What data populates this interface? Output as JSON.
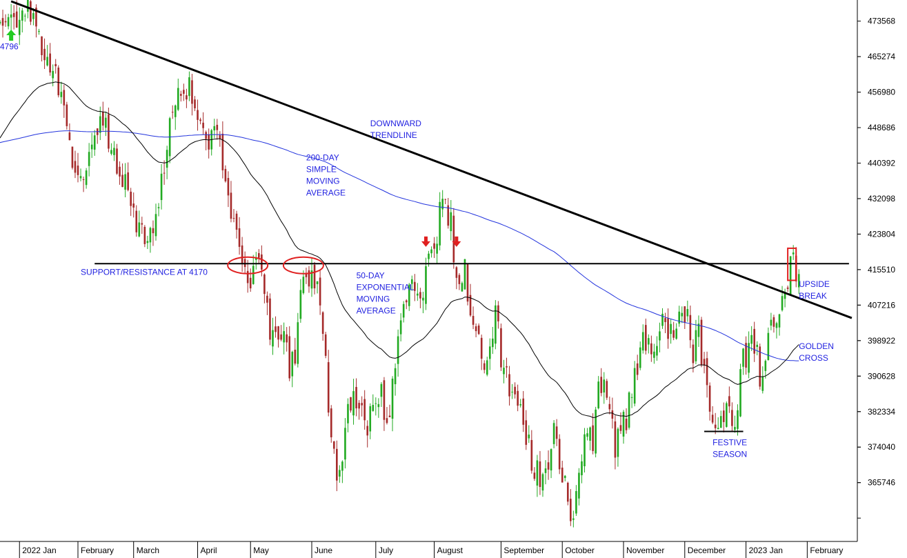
{
  "chart_data": {
    "type": "candlestick",
    "y_ticks": [
      365746,
      374040,
      382334,
      390628,
      398922,
      407216,
      415510,
      423804,
      432098,
      440392,
      448686,
      456980,
      465274,
      473568
    ],
    "ylim": [
      352000,
      478500
    ],
    "x_months": [
      "2022 Jan",
      "February",
      "March",
      "April",
      "May",
      "June",
      "July",
      "August",
      "September",
      "October",
      "November",
      "December",
      "2023 Jan",
      "February"
    ],
    "month_days": [
      0,
      21,
      41,
      64,
      83,
      105,
      128,
      149,
      173,
      195,
      217,
      239,
      261,
      283
    ],
    "x_range_days": [
      -7,
      301
    ],
    "colors": {
      "up": "#22aa22",
      "down": "#a52a2a",
      "sma": "#2233dd",
      "ema": "#000000",
      "trend": "#000000",
      "annotation": "#1f1fe0",
      "marker": "#e02020"
    },
    "close_anchors": [
      [
        -7,
        472000
      ],
      [
        -2,
        474500
      ],
      [
        3,
        476000
      ],
      [
        6,
        472000
      ],
      [
        10,
        466000
      ],
      [
        14,
        458000
      ],
      [
        18,
        444000
      ],
      [
        22,
        436000
      ],
      [
        26,
        446000
      ],
      [
        30,
        451000
      ],
      [
        33,
        444000
      ],
      [
        36,
        438000
      ],
      [
        39,
        434000
      ],
      [
        42,
        426000
      ],
      [
        46,
        420000
      ],
      [
        50,
        432000
      ],
      [
        53,
        446000
      ],
      [
        57,
        455000
      ],
      [
        61,
        458000
      ],
      [
        63,
        454000
      ],
      [
        66,
        449000
      ],
      [
        68,
        443000
      ],
      [
        71,
        448000
      ],
      [
        74,
        436000
      ],
      [
        77,
        428000
      ],
      [
        80,
        416000
      ],
      [
        83,
        412000
      ],
      [
        86,
        420000
      ],
      [
        88,
        408000
      ],
      [
        90,
        402000
      ],
      [
        92,
        398000
      ],
      [
        95,
        400000
      ],
      [
        97,
        393000
      ],
      [
        99,
        397000
      ],
      [
        101,
        410000
      ],
      [
        104,
        414000
      ],
      [
        106,
        412000
      ],
      [
        108,
        408000
      ],
      [
        110,
        396000
      ],
      [
        112,
        375000
      ],
      [
        114,
        368000
      ],
      [
        116,
        374000
      ],
      [
        118,
        383000
      ],
      [
        120,
        387000
      ],
      [
        123,
        381000
      ],
      [
        125,
        380000
      ],
      [
        127,
        383000
      ],
      [
        130,
        386000
      ],
      [
        132,
        379000
      ],
      [
        134,
        390000
      ],
      [
        136,
        397000
      ],
      [
        138,
        404000
      ],
      [
        141,
        411000
      ],
      [
        143,
        413000
      ],
      [
        145,
        411000
      ],
      [
        147,
        416000
      ],
      [
        149,
        421000
      ],
      [
        151,
        428000
      ],
      [
        153,
        430000
      ],
      [
        155,
        426000
      ],
      [
        157,
        413000
      ],
      [
        158,
        410000
      ],
      [
        160,
        418000
      ],
      [
        162,
        404000
      ],
      [
        164,
        399000
      ],
      [
        167,
        393000
      ],
      [
        169,
        398000
      ],
      [
        171,
        406000
      ],
      [
        173,
        396000
      ],
      [
        176,
        389000
      ],
      [
        179,
        386000
      ],
      [
        182,
        378000
      ],
      [
        185,
        369000
      ],
      [
        188,
        365000
      ],
      [
        190,
        372000
      ],
      [
        192,
        377000
      ],
      [
        195,
        366000
      ],
      [
        197,
        362000
      ],
      [
        199,
        356000
      ],
      [
        201,
        367000
      ],
      [
        203,
        378000
      ],
      [
        206,
        376000
      ],
      [
        208,
        386000
      ],
      [
        210,
        388000
      ],
      [
        212,
        386000
      ],
      [
        214,
        374000
      ],
      [
        216,
        381000
      ],
      [
        218,
        378000
      ],
      [
        220,
        389000
      ],
      [
        222,
        393000
      ],
      [
        224,
        398000
      ],
      [
        226,
        400000
      ],
      [
        228,
        396000
      ],
      [
        230,
        402000
      ],
      [
        232,
        404000
      ],
      [
        235,
        399000
      ],
      [
        237,
        405000
      ],
      [
        238,
        408000
      ],
      [
        240,
        403000
      ],
      [
        242,
        397000
      ],
      [
        244,
        401000
      ],
      [
        246,
        390000
      ],
      [
        248,
        381000
      ],
      [
        251,
        379000
      ],
      [
        254,
        381000
      ],
      [
        256,
        380000
      ],
      [
        258,
        384000
      ],
      [
        260,
        394000
      ],
      [
        262,
        397000
      ],
      [
        264,
        398000
      ],
      [
        266,
        391000
      ],
      [
        268,
        397000
      ],
      [
        270,
        401000
      ],
      [
        272,
        404000
      ],
      [
        274,
        406000
      ],
      [
        276,
        414000
      ],
      [
        278,
        417000
      ],
      [
        280,
        415000
      ]
    ],
    "trendline": {
      "start": [
        -3,
        478200
      ],
      "end": [
        299,
        404200
      ]
    },
    "support_level": 416900,
    "support_range_days": [
      27,
      298
    ],
    "festive_line": {
      "value": 377700,
      "range_days": [
        246,
        260
      ]
    },
    "down_arrows": [
      {
        "day": 146,
        "value": 421000
      },
      {
        "day": 157,
        "value": 421000
      }
    ],
    "up_arrow": {
      "day": -3,
      "value": 469000
    },
    "ellipses": [
      {
        "day": 82,
        "value": 416500
      },
      {
        "day": 102,
        "value": 416500
      }
    ],
    "breakout_box": {
      "day_from": 276,
      "day_to": 279,
      "value_top": 420500,
      "value_bottom": 413000
    },
    "annotations": [
      {
        "lines": [
          "4796"
        ],
        "day": -7,
        "value": 467000
      },
      {
        "lines": [
          "DOWNWARD",
          "TRENDLINE"
        ],
        "day": 126,
        "value": 449000
      },
      {
        "lines": [
          "200-DAY",
          "SIMPLE",
          "MOVING",
          "AVERAGE"
        ],
        "day": 103,
        "value": 441000
      },
      {
        "lines": [
          "SUPPORT/RESISTANCE AT 4170"
        ],
        "day": 22,
        "value": 414300
      },
      {
        "lines": [
          "50-DAY",
          "EXPONENTIAL",
          "MOVING",
          "AVERAGE"
        ],
        "day": 121,
        "value": 413500
      },
      {
        "lines": [
          "UPSIDE",
          "BREAK"
        ],
        "day": 280,
        "value": 411500
      },
      {
        "lines": [
          "GOLDEN",
          "CROSS"
        ],
        "day": 280,
        "value": 397000
      },
      {
        "lines": [
          "FESTIVE",
          "SEASON"
        ],
        "day": 249,
        "value": 374500
      }
    ]
  }
}
